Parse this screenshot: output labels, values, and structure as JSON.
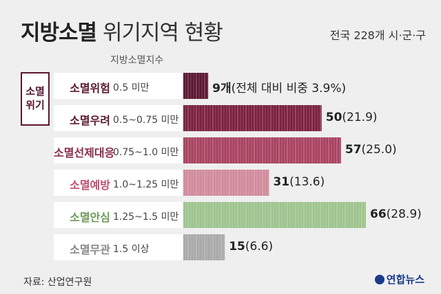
{
  "title_bold": "지방소멸",
  "title_light": "위기지역 현황",
  "scope": "전국 228개 시·군·구",
  "index_header": "지방소멸지수",
  "crisis_label_line1": "소멸",
  "crisis_label_line2": "위기",
  "source": "자료: 산업연구원",
  "logo": "연합뉴스",
  "chart_data": {
    "type": "bar",
    "categories": [
      "소멸위험",
      "소멸우려",
      "소멸선제대응",
      "소멸예방",
      "소멸안심",
      "소멸무관"
    ],
    "ranges": [
      "0.5 미만",
      "0.5~0.75 미만",
      "0.75~1.0 미만",
      "1.0~1.25 미만",
      "1.25~1.5 미만",
      "1.5 이상"
    ],
    "values": [
      9,
      50,
      57,
      31,
      66,
      15
    ],
    "shares": [
      "(전체 대비 비중 3.9%)",
      "(21.9)",
      "(25.0)",
      "(13.6)",
      "(28.9)",
      "(6.6)"
    ],
    "value_suffix": [
      "개",
      "",
      "",
      "",
      "",
      ""
    ],
    "colors": [
      "#5a1630",
      "#7a1f3d",
      "#a8415f",
      "#d08a9a",
      "#9ec48e",
      "#a9a9a9"
    ],
    "label_colors": [
      "#5a1630",
      "#5a1630",
      "#8a2b4a",
      "#c05070",
      "#6f9a5a",
      "#888888"
    ],
    "xlim": [
      0,
      66
    ]
  }
}
